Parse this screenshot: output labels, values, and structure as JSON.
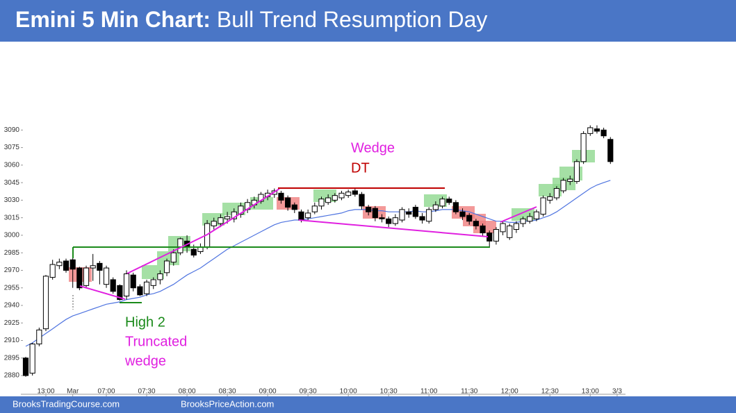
{
  "header": {
    "title_bold": "Emini 5 Min Chart:",
    "title_rest": "Bull Trend Resumption Day"
  },
  "footer": {
    "left": "BrooksTradingCourse.com",
    "right": "BrooksPriceAction.com"
  },
  "annotations": {
    "wedge": "Wedge",
    "dt": "DT",
    "high2": "High 2",
    "truncated": "Truncated",
    "wedge2": "wedge"
  },
  "chart_data": {
    "type": "candlestick",
    "categories": [
      null,
      null,
      null,
      "13:00",
      null,
      null,
      null,
      "Mar",
      null,
      null,
      null,
      null,
      "07:00",
      null,
      null,
      null,
      null,
      null,
      "07:30",
      null,
      null,
      null,
      null,
      null,
      "08:00",
      null,
      null,
      null,
      null,
      null,
      "08:30",
      null,
      null,
      null,
      null,
      null,
      "09:00",
      null,
      null,
      null,
      null,
      null,
      "09:30",
      null,
      null,
      null,
      null,
      null,
      "10:00",
      null,
      null,
      null,
      null,
      null,
      "10:30",
      null,
      null,
      null,
      null,
      null,
      "11:00",
      null,
      null,
      null,
      null,
      null,
      "11:30",
      null,
      null,
      null,
      null,
      null,
      "12:00",
      null,
      null,
      null,
      null,
      null,
      "12:30",
      null,
      null,
      null,
      null,
      null,
      "13:00",
      null,
      null,
      null,
      "3/3"
    ],
    "open": [
      2895,
      2882,
      2907,
      2920,
      2964,
      2974,
      2978,
      2979,
      2972,
      2957,
      2972,
      2976,
      2958,
      2962,
      2957,
      2948,
      2966,
      2956,
      2950,
      2957,
      2962,
      2968,
      2977,
      2985,
      2995,
      2988,
      2986,
      2990,
      3008,
      3010,
      3014,
      3014,
      3018,
      3022,
      3026,
      3029,
      3033,
      3035,
      3036,
      3032,
      3026,
      3020,
      3015,
      3020,
      3025,
      3028,
      3030,
      3032,
      3034,
      3038,
      3035,
      3024,
      3023,
      3015,
      3014,
      3010,
      3013,
      3020,
      3024,
      3016,
      3012,
      3022,
      3025,
      3031,
      3028,
      3020,
      3017,
      3012,
      3008,
      3002,
      2995,
      3003,
      2998,
      3005,
      3010,
      3012,
      3014,
      3018,
      3030,
      3032,
      3038,
      3046,
      3046,
      3063,
      3087,
      3091,
      3090,
      3082,
      null
    ],
    "high": [
      2896,
      2908,
      2921,
      2966,
      2979,
      2980,
      2980,
      2985,
      2973,
      2974,
      2984,
      2978,
      2974,
      2964,
      2958,
      2970,
      2968,
      2958,
      2962,
      2964,
      2970,
      2980,
      2988,
      2998,
      3000,
      2992,
      2993,
      3013,
      3015,
      3018,
      3020,
      3023,
      3028,
      3031,
      3033,
      3037,
      3039,
      3040,
      3038,
      3034,
      3028,
      3022,
      3022,
      3028,
      3033,
      3035,
      3036,
      3038,
      3039,
      3040,
      3037,
      3026,
      3025,
      3018,
      3016,
      3018,
      3024,
      3023,
      3026,
      3019,
      3024,
      3029,
      3033,
      3033,
      3030,
      3023,
      3019,
      3014,
      3010,
      3004,
      3007,
      3012,
      3010,
      3012,
      3016,
      3019,
      3022,
      3034,
      3036,
      3042,
      3049,
      3051,
      3065,
      3089,
      3094,
      3094,
      3092,
      3084,
      null
    ],
    "low": [
      2879,
      2880,
      2905,
      2918,
      2962,
      2971,
      2968,
      2955,
      2953,
      2955,
      2961,
      2958,
      2955,
      2950,
      2944,
      2945,
      2952,
      2948,
      2948,
      2954,
      2958,
      2965,
      2974,
      2983,
      2985,
      2981,
      2984,
      2988,
      3005,
      3007,
      3010,
      3011,
      3015,
      3019,
      3023,
      3027,
      3030,
      3032,
      3027,
      3021,
      3019,
      3011,
      3013,
      3018,
      3022,
      3026,
      3028,
      3030,
      3032,
      3033,
      3022,
      3017,
      3012,
      3011,
      3007,
      3008,
      3011,
      3015,
      3014,
      3010,
      3010,
      3020,
      3023,
      3026,
      3018,
      3013,
      3009,
      3005,
      2999,
      2990,
      2992,
      3000,
      2996,
      3002,
      3007,
      3010,
      3012,
      3016,
      3027,
      3030,
      3036,
      3043,
      3044,
      3061,
      3085,
      3087,
      3083,
      3061,
      null
    ],
    "close": [
      2880,
      2907,
      2919,
      2965,
      2975,
      2977,
      2970,
      2971,
      2955,
      2972,
      2974,
      2970,
      2972,
      2952,
      2945,
      2967,
      2955,
      2949,
      2960,
      2962,
      2967,
      2978,
      2985,
      2997,
      2990,
      2983,
      2990,
      3010,
      3012,
      3015,
      3016,
      3020,
      3025,
      3028,
      3030,
      3035,
      3036,
      3038,
      3030,
      3024,
      3022,
      3013,
      3019,
      3025,
      3031,
      3032,
      3034,
      3036,
      3037,
      3035,
      3025,
      3020,
      3015,
      3014,
      3010,
      3015,
      3022,
      3018,
      3016,
      3013,
      3022,
      3026,
      3031,
      3028,
      3020,
      3016,
      3012,
      3008,
      3002,
      2995,
      3005,
      3010,
      3008,
      3010,
      3014,
      3016,
      3020,
      3032,
      3033,
      3040,
      3047,
      3048,
      3063,
      3087,
      3092,
      3089,
      3085,
      3063,
      null
    ],
    "ma": {
      "color": "#4f74e0",
      "values": [
        2905,
        2908,
        2912,
        2916,
        2920,
        2924,
        2928,
        2931,
        2933,
        2935,
        2937,
        2939,
        2941,
        2942,
        2943,
        2945,
        2946,
        2947,
        2949,
        2950,
        2952,
        2955,
        2958,
        2962,
        2966,
        2969,
        2972,
        2976,
        2980,
        2984,
        2988,
        2991,
        2994,
        2997,
        3000,
        3003,
        3006,
        3009,
        3011,
        3012,
        3013,
        3013,
        3014,
        3015,
        3016,
        3017,
        3018,
        3019,
        3021,
        3022,
        3022,
        3022,
        3021,
        3021,
        3020,
        3020,
        3020,
        3020,
        3021,
        3020,
        3020,
        3021,
        3022,
        3022,
        3022,
        3021,
        3020,
        3018,
        3016,
        3014,
        3012,
        3012,
        3011,
        3011,
        3012,
        3012,
        3013,
        3015,
        3017,
        3020,
        3024,
        3028,
        3032,
        3036,
        3040,
        3043,
        3045,
        3047,
        null
      ]
    },
    "up_color": "#ffffff",
    "down_color": "#000000",
    "ylim": [
      2864,
      3165
    ],
    "yticks": [
      2880,
      2895,
      2910,
      2925,
      2940,
      2955,
      2970,
      2985,
      3000,
      3015,
      3030,
      3045,
      3060,
      3075,
      3090
    ]
  }
}
